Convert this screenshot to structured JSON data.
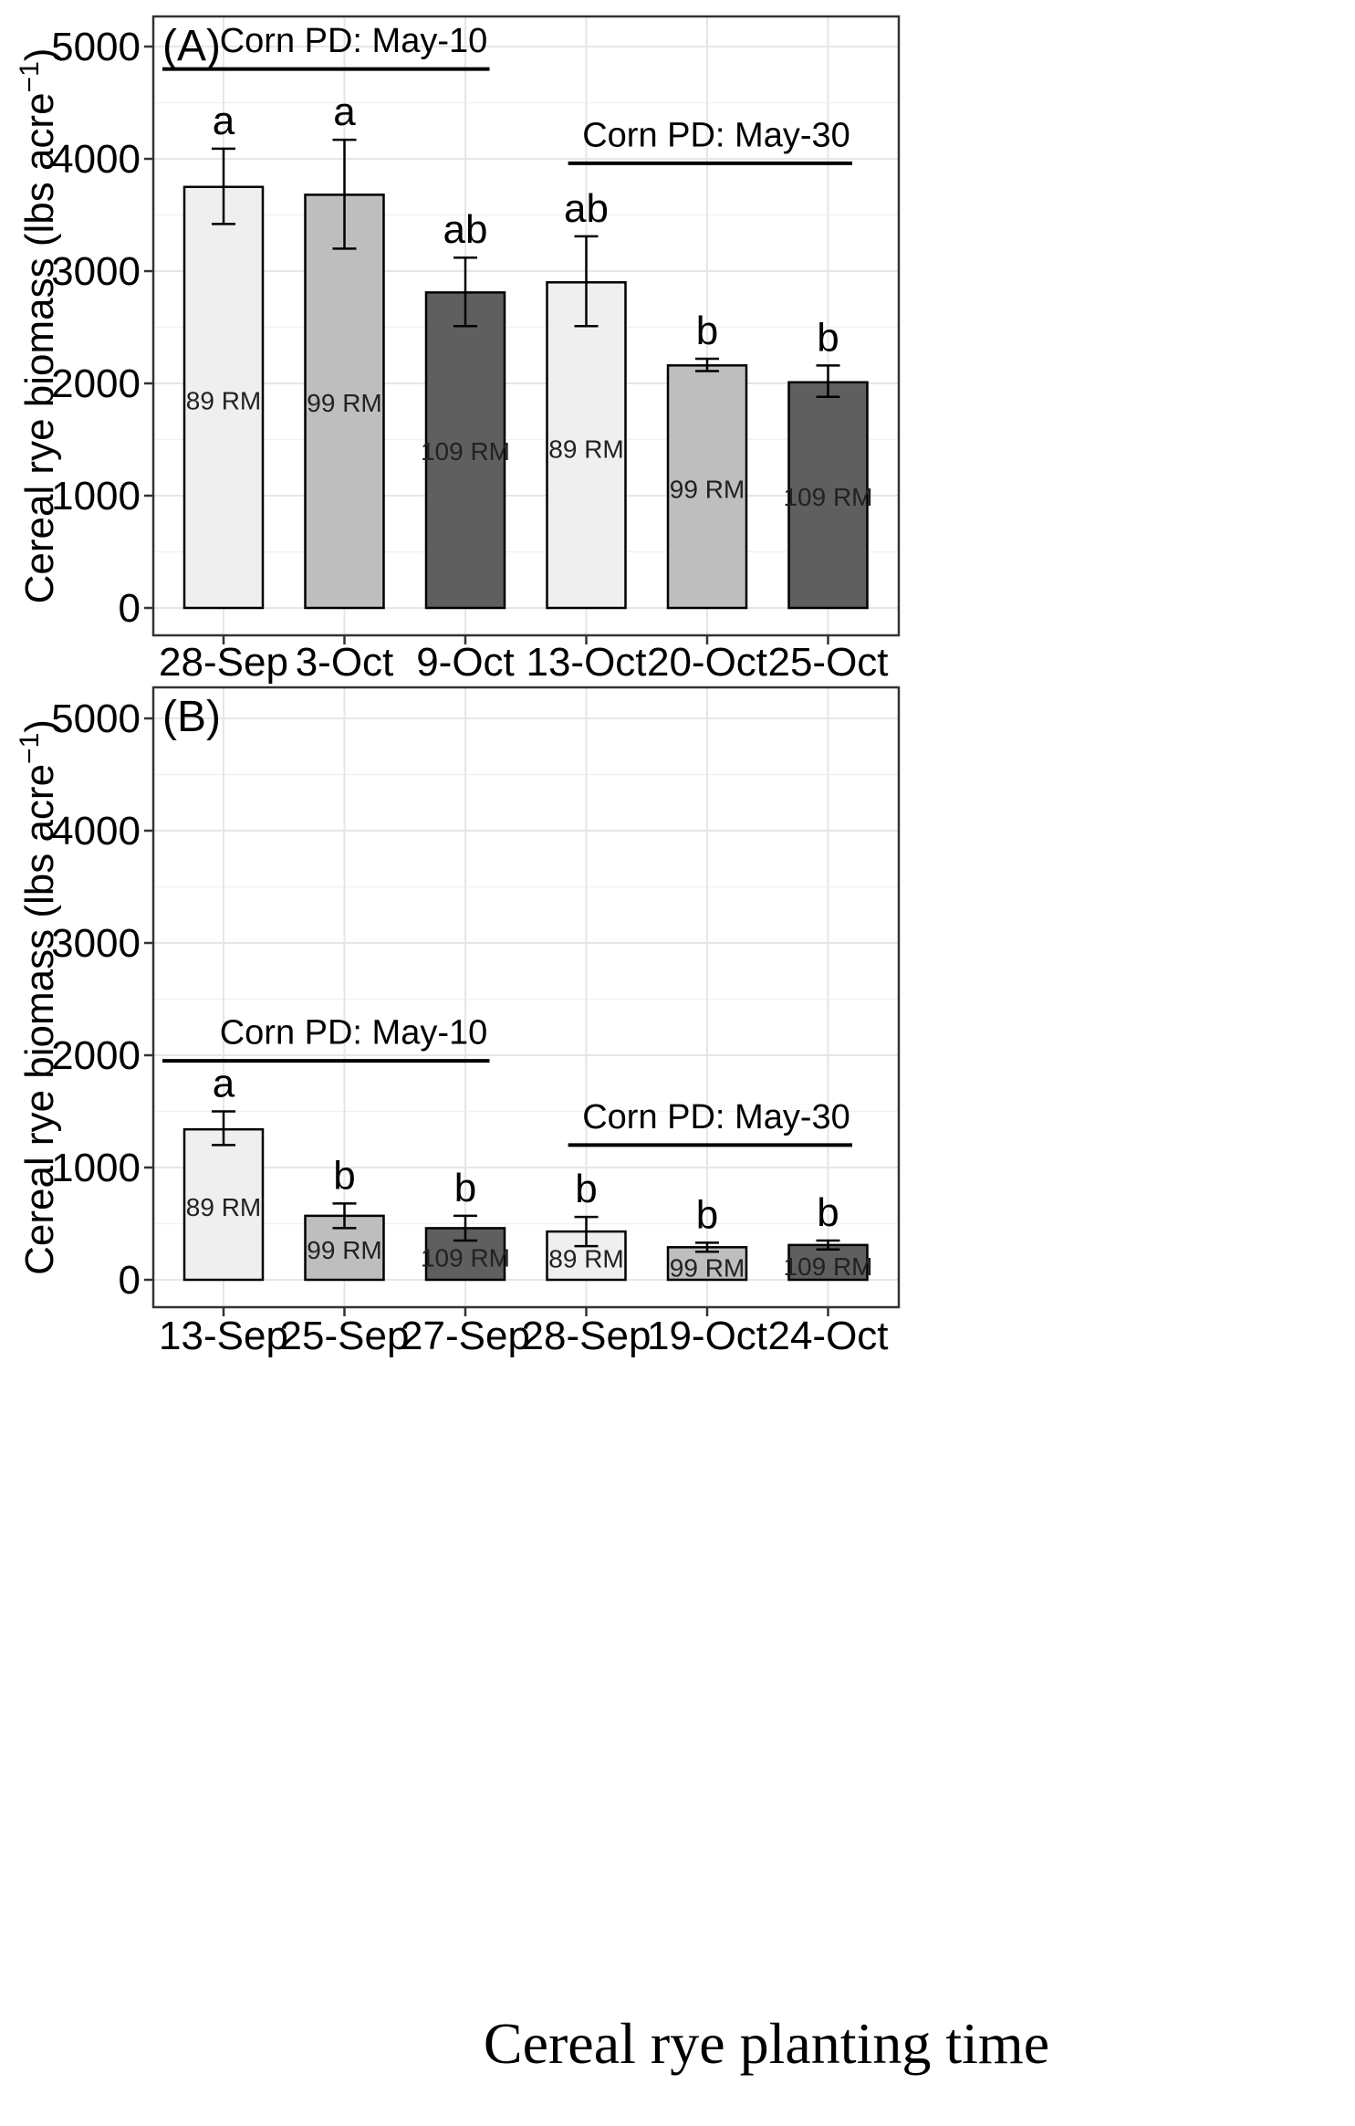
{
  "figure": {
    "xlabel": "Cereal rye planting time"
  },
  "chart_data": [
    {
      "type": "bar",
      "panel": "(A)",
      "ylabel": "Cereal rye biomass (lbs acre",
      "ylabel_sup": "−1",
      "ylabel_close": ")",
      "ylim": [
        0,
        5000
      ],
      "yticks": [
        0,
        1000,
        2000,
        3000,
        4000,
        5000
      ],
      "grid": true,
      "categories": [
        "28-Sep",
        "3-Oct",
        "9-Oct",
        "13-Oct",
        "20-Oct",
        "25-Oct"
      ],
      "values": [
        3750,
        3680,
        2810,
        2900,
        2160,
        2010
      ],
      "error_low": [
        3420,
        3200,
        2510,
        2510,
        2110,
        1880
      ],
      "error_high": [
        4090,
        4170,
        3120,
        3310,
        2220,
        2160
      ],
      "letters": [
        "a",
        "a",
        "ab",
        "ab",
        "b",
        "b"
      ],
      "bar_labels": [
        "89 RM",
        "99 RM",
        "109 RM",
        "89 RM",
        "99 RM",
        "109 RM"
      ],
      "bar_label_values": [
        1850,
        1830,
        1400,
        1420,
        1060,
        990
      ],
      "fills": [
        "#efefef",
        "#bebebe",
        "#5f5f5f",
        "#efefef",
        "#bebebe",
        "#5f5f5f"
      ],
      "groups": [
        {
          "label": "Corn PD: May-10",
          "y": 4800,
          "label_y": 4950,
          "x_start": -0.5,
          "x_end": 2.2,
          "label_x": 1.0
        },
        {
          "label": "Corn PD: May-30",
          "y": 3960,
          "label_y": 4110,
          "x_start": 2.85,
          "x_end": 5.2,
          "label_x": 4.0
        }
      ]
    },
    {
      "type": "bar",
      "panel": "(B)",
      "ylabel": "Cereal rye biomass (lbs acre",
      "ylabel_sup": "−1",
      "ylabel_close": ")",
      "ylim": [
        0,
        5000
      ],
      "yticks": [
        0,
        1000,
        2000,
        3000,
        4000,
        5000
      ],
      "grid": true,
      "categories": [
        "13-Sep",
        "25-Sep",
        "27-Sep",
        "28-Sep",
        "19-Oct",
        "24-Oct"
      ],
      "values": [
        1340,
        570,
        460,
        430,
        290,
        310
      ],
      "error_low": [
        1200,
        460,
        350,
        300,
        250,
        270
      ],
      "error_high": [
        1500,
        680,
        570,
        560,
        330,
        350
      ],
      "letters": [
        "a",
        "b",
        "b",
        "b",
        "b",
        "b"
      ],
      "bar_labels": [
        "89 RM",
        "99 RM",
        "109 RM",
        "89 RM",
        "99 RM",
        "109 RM"
      ],
      "bar_label_values": [
        650,
        270,
        200,
        190,
        110,
        120
      ],
      "fills": [
        "#efefef",
        "#bebebe",
        "#5f5f5f",
        "#efefef",
        "#bebebe",
        "#5f5f5f"
      ],
      "groups": [
        {
          "label": "Corn PD: May-10",
          "y": 1950,
          "label_y": 2100,
          "x_start": -0.5,
          "x_end": 2.2,
          "label_x": 1.0
        },
        {
          "label": "Corn PD: May-30",
          "y": 1200,
          "label_y": 1350,
          "x_start": 2.85,
          "x_end": 5.2,
          "label_x": 4.0
        }
      ]
    }
  ]
}
